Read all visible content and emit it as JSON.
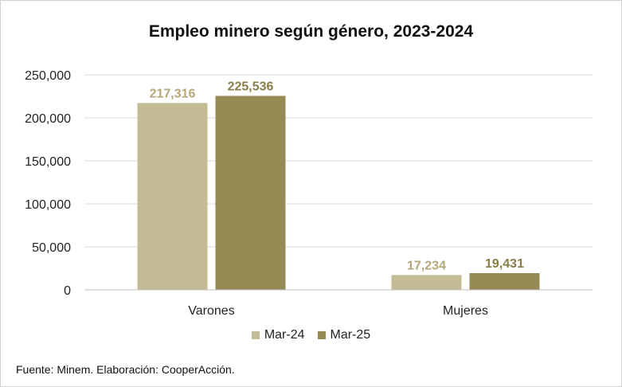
{
  "chart_data": {
    "type": "bar",
    "title": "Empleo minero según género, 2023-2024",
    "categories": [
      "Varones",
      "Mujeres"
    ],
    "series": [
      {
        "name": "Mar-24",
        "values": [
          217316,
          17234
        ],
        "labels": [
          "217,316",
          "17,234"
        ],
        "color": "#c4bc96",
        "label_color": "#b5a77a"
      },
      {
        "name": "Mar-25",
        "values": [
          225536,
          19431
        ],
        "labels": [
          "225,536",
          "19,431"
        ],
        "color": "#968b55",
        "label_color": "#8a7e48"
      }
    ],
    "ylim": [
      0,
      250000
    ],
    "yticks": [
      0,
      50000,
      100000,
      150000,
      200000,
      250000
    ],
    "ytick_labels": [
      "0",
      "50,000",
      "100,000",
      "150,000",
      "200,000",
      "250,000"
    ],
    "grid": true,
    "legend": "bottom",
    "source": "Fuente: Minem. Elaboración: CooperAcción."
  }
}
